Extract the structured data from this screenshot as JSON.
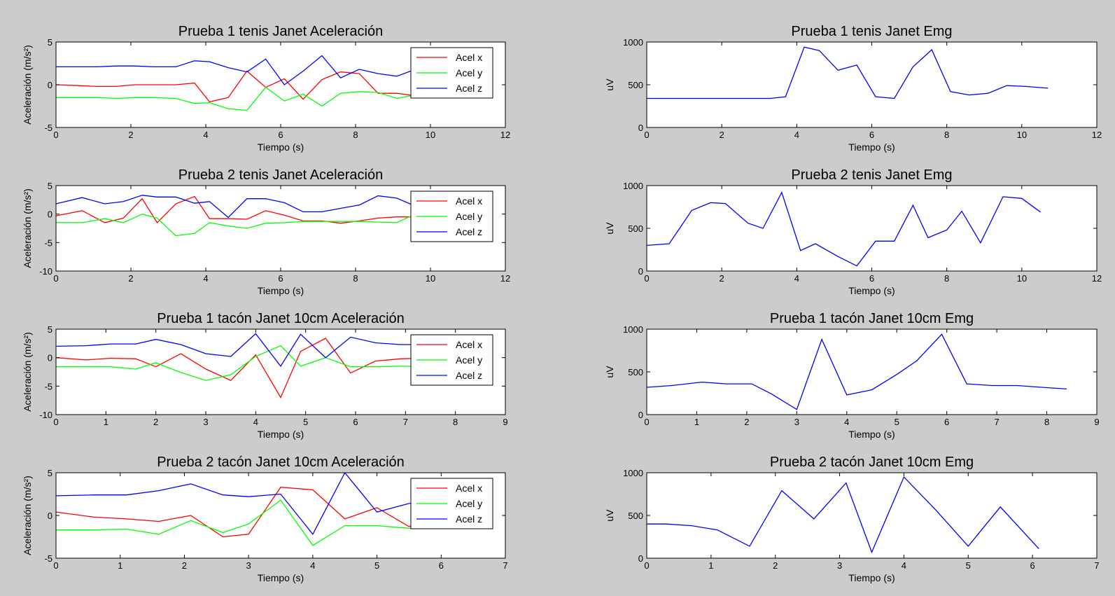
{
  "colors": {
    "background": "#cccccc",
    "axes_bg": "#ffffff",
    "acel_x": "#ff0000",
    "acel_y": "#00ff00",
    "acel_z": "#0000ff",
    "emg": "#0000ff"
  },
  "chart_data": [
    {
      "type": "line",
      "title": "Prueba 1 tenis Janet Aceleración",
      "xlabel": "Tiempo (s)",
      "ylabel": "Aceleración (m/s²)",
      "xlim": [
        0,
        12
      ],
      "ylim": [
        -5,
        5
      ],
      "xticks": [
        0,
        2,
        4,
        6,
        8,
        10,
        12
      ],
      "yticks": [
        -5,
        0,
        5
      ],
      "legend": "top-right",
      "series": [
        {
          "name": "Acel x",
          "color": "#ff0000",
          "x": [
            0,
            0.6,
            1.1,
            1.6,
            2.1,
            2.6,
            3.2,
            3.7,
            4.1,
            4.6,
            5.1,
            5.6,
            6.1,
            6.6,
            7.1,
            7.6,
            8.1,
            8.6,
            9.1,
            9.6,
            10.1
          ],
          "y": [
            0,
            -0.1,
            -0.2,
            -0.2,
            0,
            0,
            0,
            0.2,
            -2,
            -1.5,
            1.6,
            -0.3,
            0.7,
            -1.7,
            0.6,
            1.5,
            1.3,
            -1,
            -1,
            -1.3,
            -1.3
          ]
        },
        {
          "name": "Acel y",
          "color": "#00ff00",
          "x": [
            0,
            0.6,
            1.1,
            1.6,
            2.1,
            2.6,
            3.2,
            3.7,
            4.1,
            4.6,
            5.1,
            5.6,
            6.1,
            6.6,
            7.1,
            7.6,
            8.1,
            8.6,
            9.1,
            9.6,
            10.1
          ],
          "y": [
            -1.5,
            -1.5,
            -1.5,
            -1.6,
            -1.5,
            -1.5,
            -1.6,
            -2.2,
            -2.1,
            -2.8,
            -3,
            -0.3,
            -1.9,
            -1.1,
            -2.5,
            -1,
            -0.8,
            -0.9,
            -1.6,
            -1.2,
            -1.2
          ]
        },
        {
          "name": "Acel z",
          "color": "#0000ff",
          "x": [
            0,
            0.6,
            1.1,
            1.6,
            2.1,
            2.6,
            3.2,
            3.7,
            4.1,
            4.6,
            5.1,
            5.6,
            6.1,
            6.6,
            7.1,
            7.6,
            8.1,
            8.6,
            9.1,
            9.6,
            10.1
          ],
          "y": [
            2.1,
            2.1,
            2.1,
            2.2,
            2.2,
            2.1,
            2.1,
            2.8,
            2.7,
            2,
            1.5,
            3,
            0,
            1.6,
            3.4,
            0.8,
            1.8,
            1.3,
            1,
            1.8,
            1.8
          ]
        }
      ]
    },
    {
      "type": "line",
      "title": "Prueba 1 tenis Janet Emg",
      "xlabel": "Tiempo (s)",
      "ylabel": "uV",
      "xlim": [
        0,
        12
      ],
      "ylim": [
        0,
        1000
      ],
      "xticks": [
        0,
        2,
        4,
        6,
        8,
        10,
        12
      ],
      "yticks": [
        0,
        500,
        1000
      ],
      "series": [
        {
          "color": "#0000ff",
          "x": [
            0,
            3.3,
            3.7,
            4.2,
            4.6,
            5.1,
            5.6,
            6.1,
            6.6,
            7.1,
            7.6,
            8.1,
            8.6,
            9.1,
            9.6,
            10.1,
            10.7
          ],
          "y": [
            340,
            340,
            360,
            940,
            900,
            670,
            730,
            360,
            340,
            710,
            910,
            420,
            380,
            400,
            490,
            480,
            460
          ]
        }
      ]
    },
    {
      "type": "line",
      "title": "Prueba 2 tenis Janet Aceleración",
      "xlabel": "Tiempo (s)",
      "ylabel": "Aceleración (m/s²)",
      "xlim": [
        0,
        12
      ],
      "ylim": [
        -10,
        5
      ],
      "xticks": [
        0,
        2,
        4,
        6,
        8,
        10,
        12
      ],
      "yticks": [
        -10,
        -5,
        0,
        5
      ],
      "legend": "top-right",
      "series": [
        {
          "name": "Acel x",
          "color": "#ff0000",
          "x": [
            0,
            0.7,
            1.3,
            1.8,
            2.3,
            2.7,
            3.2,
            3.7,
            4.1,
            4.6,
            5.1,
            5.6,
            6.1,
            6.6,
            7.1,
            7.6,
            8.1,
            8.6,
            9.1,
            9.6,
            10
          ],
          "y": [
            -0.3,
            0.6,
            -1.5,
            -0.7,
            2.7,
            -1.5,
            1.8,
            3.1,
            -0.8,
            -0.8,
            -0.9,
            0.6,
            -0.2,
            -1.2,
            -1.2,
            -1.6,
            -1.2,
            -0.7,
            -0.5,
            -0.5,
            -1.5
          ]
        },
        {
          "name": "Acel y",
          "color": "#00ff00",
          "x": [
            0,
            0.7,
            1.3,
            1.8,
            2.3,
            2.7,
            3.2,
            3.7,
            4.1,
            4.6,
            5.1,
            5.6,
            6.1,
            6.6,
            7.1,
            7.6,
            8.1,
            8.6,
            9.1,
            9.6,
            10
          ],
          "y": [
            -1.5,
            -1.5,
            -0.8,
            -1.5,
            0,
            -0.7,
            -3.8,
            -3.4,
            -1.5,
            -2.1,
            -2.5,
            -1.6,
            -1.5,
            -1.3,
            -1.3,
            -1.3,
            -1.3,
            -1.4,
            -1.5,
            0,
            -0.5
          ]
        },
        {
          "name": "Acel z",
          "color": "#0000ff",
          "x": [
            0,
            0.7,
            1.3,
            1.8,
            2.3,
            2.7,
            3.2,
            3.7,
            4.1,
            4.6,
            5.1,
            5.6,
            6.1,
            6.6,
            7.1,
            7.6,
            8.1,
            8.6,
            9.1,
            9.6,
            10
          ],
          "y": [
            1.8,
            2.9,
            1.8,
            2.2,
            3.3,
            3,
            3,
            1.9,
            2.2,
            -0.6,
            2.7,
            2.7,
            2,
            0.4,
            0.4,
            1,
            1.6,
            3.2,
            2.8,
            1.4,
            1.4
          ]
        }
      ]
    },
    {
      "type": "line",
      "title": "Prueba 2 tenis Janet Emg",
      "xlabel": "Tiempo (s)",
      "ylabel": "uV",
      "xlim": [
        0,
        12
      ],
      "ylim": [
        0,
        1000
      ],
      "xticks": [
        0,
        2,
        4,
        6,
        8,
        10,
        12
      ],
      "yticks": [
        0,
        500,
        1000
      ],
      "series": [
        {
          "color": "#0000ff",
          "x": [
            0,
            0.6,
            1.2,
            1.7,
            2.1,
            2.7,
            3.1,
            3.6,
            4.1,
            4.5,
            5.1,
            5.6,
            6.1,
            6.6,
            7.1,
            7.5,
            8,
            8.4,
            8.9,
            9.5,
            10,
            10.5
          ],
          "y": [
            300,
            320,
            710,
            800,
            790,
            560,
            500,
            920,
            240,
            320,
            170,
            60,
            350,
            350,
            770,
            390,
            480,
            700,
            330,
            870,
            850,
            690
          ]
        }
      ]
    },
    {
      "type": "line",
      "title": "Prueba 1 tacón Janet 10cm Aceleración",
      "xlabel": "Tiempo (s)",
      "ylabel": "Aceleración (m/s²)",
      "xlim": [
        0,
        9
      ],
      "ylim": [
        -10,
        5
      ],
      "xticks": [
        0,
        1,
        2,
        3,
        4,
        5,
        6,
        7,
        8,
        9
      ],
      "yticks": [
        -10,
        -5,
        0,
        5
      ],
      "legend": "top-right",
      "series": [
        {
          "name": "Acel x",
          "color": "#ff0000",
          "x": [
            0,
            0.6,
            1.1,
            1.6,
            2,
            2.5,
            3,
            3.5,
            4,
            4.5,
            4.9,
            5.4,
            5.9,
            6.4,
            6.9,
            7.3
          ],
          "y": [
            0,
            -0.4,
            -0.1,
            -0.2,
            -1.6,
            0.7,
            -2,
            -4,
            0.5,
            -7,
            1.1,
            3.4,
            -2.7,
            -0.6,
            -0.2,
            -0.1
          ]
        },
        {
          "name": "Acel y",
          "color": "#00ff00",
          "x": [
            0,
            0.6,
            1.1,
            1.6,
            2,
            2.5,
            3,
            3.5,
            4,
            4.5,
            4.9,
            5.4,
            5.9,
            6.4,
            6.9,
            7.3
          ],
          "y": [
            -1.6,
            -1.6,
            -1.6,
            -2,
            -0.9,
            -2.6,
            -4,
            -3,
            0.2,
            2.1,
            -1.5,
            0,
            -1.6,
            -1.6,
            -1.5,
            -1.5
          ]
        },
        {
          "name": "Acel z",
          "color": "#0000ff",
          "x": [
            0,
            0.6,
            1.1,
            1.6,
            2,
            2.5,
            3,
            3.5,
            4,
            4.5,
            4.9,
            5.4,
            5.9,
            6.4,
            6.9,
            7.3
          ],
          "y": [
            2,
            2.1,
            2.4,
            2.4,
            3.2,
            2.3,
            0.7,
            0.2,
            4.2,
            -1.5,
            4.1,
            0,
            3.6,
            2.6,
            2.3,
            2.3
          ]
        }
      ]
    },
    {
      "type": "line",
      "title": "Prueba 1 tacón Janet 10cm Emg",
      "xlabel": "Tiempo (s)",
      "ylabel": "uV",
      "xlim": [
        0,
        9
      ],
      "ylim": [
        0,
        1000
      ],
      "xticks": [
        0,
        1,
        2,
        3,
        4,
        5,
        6,
        7,
        8,
        9
      ],
      "yticks": [
        0,
        500,
        1000
      ],
      "series": [
        {
          "color": "#0000ff",
          "x": [
            0,
            0.5,
            1.1,
            1.6,
            2.1,
            2.5,
            3,
            3.5,
            4,
            4.5,
            5,
            5.4,
            5.9,
            6.4,
            6.9,
            7.4,
            7.9,
            8.4
          ],
          "y": [
            320,
            340,
            380,
            360,
            360,
            240,
            60,
            880,
            230,
            290,
            470,
            630,
            940,
            360,
            340,
            340,
            320,
            300
          ]
        }
      ]
    },
    {
      "type": "line",
      "title": "Prueba 2 tacón Janet 10cm Aceleración",
      "xlabel": "Tiempo (s)",
      "ylabel": "Aceleración (m/s²)",
      "xlim": [
        0,
        7
      ],
      "ylim": [
        -5,
        5
      ],
      "xticks": [
        0,
        1,
        2,
        3,
        4,
        5,
        6,
        7
      ],
      "yticks": [
        -5,
        0,
        5
      ],
      "legend": "top-right",
      "series": [
        {
          "name": "Acel x",
          "color": "#ff0000",
          "x": [
            0,
            0.6,
            1.1,
            1.6,
            2.1,
            2.6,
            3,
            3.5,
            4,
            4.5,
            5,
            5.5,
            5.9
          ],
          "y": [
            0.4,
            -0.2,
            -0.4,
            -0.7,
            0,
            -2.5,
            -2.2,
            3.3,
            3,
            -0.4,
            0.9,
            -1.3,
            -0.1
          ]
        },
        {
          "name": "Acel y",
          "color": "#00ff00",
          "x": [
            0,
            0.6,
            1.1,
            1.6,
            2.1,
            2.6,
            3,
            3.5,
            4,
            4.5,
            5,
            5.5,
            5.9
          ],
          "y": [
            -1.7,
            -1.7,
            -1.6,
            -2.2,
            -0.6,
            -2,
            -1,
            1.8,
            -3.5,
            -1.2,
            -1.2,
            -1.5,
            -1.5
          ]
        },
        {
          "name": "Acel z",
          "color": "#0000ff",
          "x": [
            0,
            0.6,
            1.1,
            1.6,
            2.1,
            2.6,
            3,
            3.5,
            4,
            4.5,
            5,
            5.5,
            5.9
          ],
          "y": [
            2.3,
            2.4,
            2.4,
            2.9,
            3.7,
            2.4,
            2.2,
            2.5,
            -2.2,
            5,
            0.4,
            1.4,
            1.8
          ]
        }
      ]
    },
    {
      "type": "line",
      "title": "Prueba 2 tacón Janet 10cm Emg",
      "xlabel": "Tiempo (s)",
      "ylabel": "uV",
      "xlim": [
        0,
        7
      ],
      "ylim": [
        0,
        1000
      ],
      "xticks": [
        0,
        1,
        2,
        3,
        4,
        5,
        6,
        7
      ],
      "yticks": [
        0,
        500,
        1000
      ],
      "series": [
        {
          "color": "#0000ff",
          "x": [
            0,
            0.3,
            0.7,
            1.1,
            1.6,
            2.1,
            2.6,
            3.1,
            3.5,
            4,
            4.5,
            5,
            5.5,
            6.1
          ],
          "y": [
            400,
            400,
            380,
            330,
            140,
            790,
            460,
            880,
            70,
            950,
            560,
            140,
            600,
            110
          ]
        }
      ]
    }
  ]
}
